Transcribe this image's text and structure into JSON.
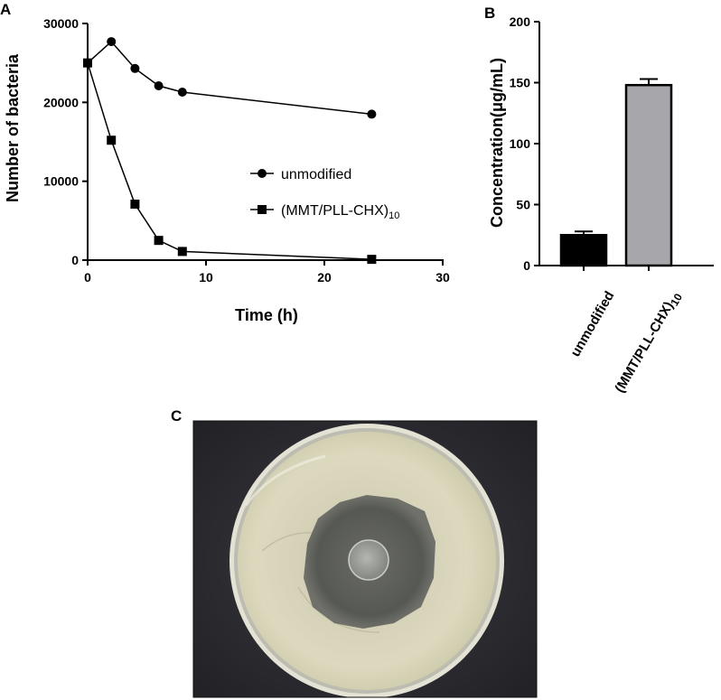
{
  "panels": {
    "a": "A",
    "b": "B",
    "c": "C"
  },
  "chart_data": [
    {
      "type": "line",
      "xlabel": "Time (h)",
      "ylabel": "Number of bacteria",
      "xlim": [
        0,
        30
      ],
      "ylim": [
        0,
        30000
      ],
      "x_ticks": [
        "0",
        "10",
        "20",
        "30"
      ],
      "y_ticks": [
        "0",
        "10000",
        "20000",
        "30000"
      ],
      "grid": false,
      "legend_position": "center-right",
      "series": [
        {
          "name": "unmodified",
          "marker": "circle",
          "x": [
            0,
            2,
            4,
            6,
            8,
            24
          ],
          "y": [
            25000,
            27700,
            24300,
            22100,
            21300,
            18500
          ]
        },
        {
          "name": "(MMT/PLL-CHX)",
          "name_subscript": "10",
          "marker": "square",
          "x": [
            0,
            2,
            4,
            6,
            8,
            24
          ],
          "y": [
            25000,
            15200,
            7100,
            2500,
            1100,
            100
          ]
        }
      ]
    },
    {
      "type": "bar",
      "ylabel": "Concentration(μg/mL)",
      "ylim": [
        0,
        200
      ],
      "y_ticks": [
        "0",
        "50",
        "100",
        "150",
        "200"
      ],
      "categories": [
        {
          "label": "unmodified",
          "subscript": ""
        },
        {
          "label": "(MMT/PLL-CHX)",
          "subscript": "10"
        }
      ],
      "values": [
        25,
        148
      ],
      "errors": [
        3,
        5
      ],
      "colors": [
        "#000000",
        "#a6a6ab"
      ]
    }
  ],
  "photo": {
    "description_icon": "petri-dish-photo",
    "colors": {
      "background": "#2b2b30",
      "agar": "#dcd9bf",
      "inhibition_zone": "#5d5f5a",
      "disk": "#9d9f99"
    }
  }
}
